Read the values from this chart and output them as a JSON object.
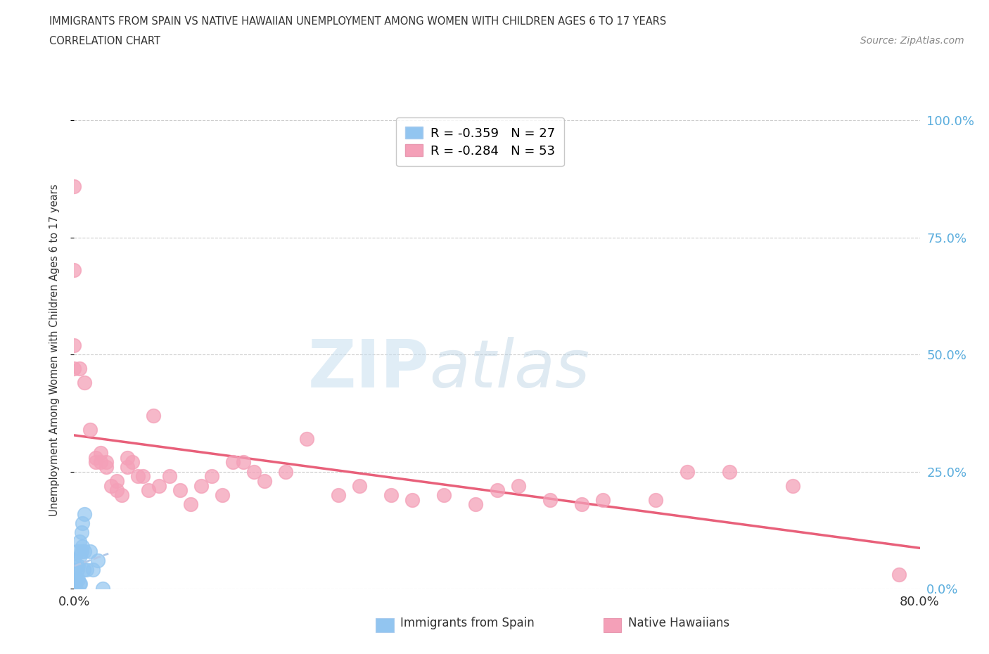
{
  "title_line1": "IMMIGRANTS FROM SPAIN VS NATIVE HAWAIIAN UNEMPLOYMENT AMONG WOMEN WITH CHILDREN AGES 6 TO 17 YEARS",
  "title_line2": "CORRELATION CHART",
  "source_text": "Source: ZipAtlas.com",
  "ylabel": "Unemployment Among Women with Children Ages 6 to 17 years",
  "xmin": 0.0,
  "xmax": 0.8,
  "ymin": 0.0,
  "ymax": 1.02,
  "yticks": [
    0.0,
    0.25,
    0.5,
    0.75,
    1.0
  ],
  "ytick_labels": [
    "0.0%",
    "25.0%",
    "50.0%",
    "75.0%",
    "100.0%"
  ],
  "color_spain": "#92c5f0",
  "color_hawaii": "#f4a0b8",
  "trendline_color_hawaii": "#e8607a",
  "trendline_color_spain": "#b0c8e8",
  "watermark_zip": "ZIP",
  "watermark_atlas": "atlas",
  "legend_r1": "R = -0.359   N = 27",
  "legend_r2": "R = -0.284   N = 53",
  "spain_x": [
    0.0,
    0.0,
    0.0,
    0.0,
    0.0,
    0.002,
    0.002,
    0.003,
    0.003,
    0.004,
    0.004,
    0.005,
    0.005,
    0.006,
    0.006,
    0.007,
    0.007,
    0.008,
    0.008,
    0.009,
    0.01,
    0.01,
    0.012,
    0.015,
    0.018,
    0.022,
    0.027
  ],
  "spain_y": [
    0.0,
    0.01,
    0.02,
    0.04,
    0.06,
    0.0,
    0.02,
    0.04,
    0.08,
    0.02,
    0.05,
    0.01,
    0.1,
    0.01,
    0.07,
    0.08,
    0.12,
    0.09,
    0.14,
    0.04,
    0.16,
    0.08,
    0.04,
    0.08,
    0.04,
    0.06,
    0.0
  ],
  "hawaii_x": [
    0.0,
    0.0,
    0.0,
    0.0,
    0.005,
    0.01,
    0.015,
    0.02,
    0.02,
    0.025,
    0.025,
    0.03,
    0.03,
    0.035,
    0.04,
    0.04,
    0.045,
    0.05,
    0.05,
    0.055,
    0.06,
    0.065,
    0.07,
    0.075,
    0.08,
    0.09,
    0.1,
    0.11,
    0.12,
    0.13,
    0.14,
    0.15,
    0.16,
    0.17,
    0.18,
    0.2,
    0.22,
    0.25,
    0.27,
    0.3,
    0.32,
    0.35,
    0.38,
    0.4,
    0.42,
    0.45,
    0.48,
    0.5,
    0.55,
    0.58,
    0.62,
    0.68,
    0.78
  ],
  "hawaii_y": [
    0.86,
    0.68,
    0.52,
    0.47,
    0.47,
    0.44,
    0.34,
    0.27,
    0.28,
    0.27,
    0.29,
    0.27,
    0.26,
    0.22,
    0.23,
    0.21,
    0.2,
    0.26,
    0.28,
    0.27,
    0.24,
    0.24,
    0.21,
    0.37,
    0.22,
    0.24,
    0.21,
    0.18,
    0.22,
    0.24,
    0.2,
    0.27,
    0.27,
    0.25,
    0.23,
    0.25,
    0.32,
    0.2,
    0.22,
    0.2,
    0.19,
    0.2,
    0.18,
    0.21,
    0.22,
    0.19,
    0.18,
    0.19,
    0.19,
    0.25,
    0.25,
    0.22,
    0.03
  ]
}
